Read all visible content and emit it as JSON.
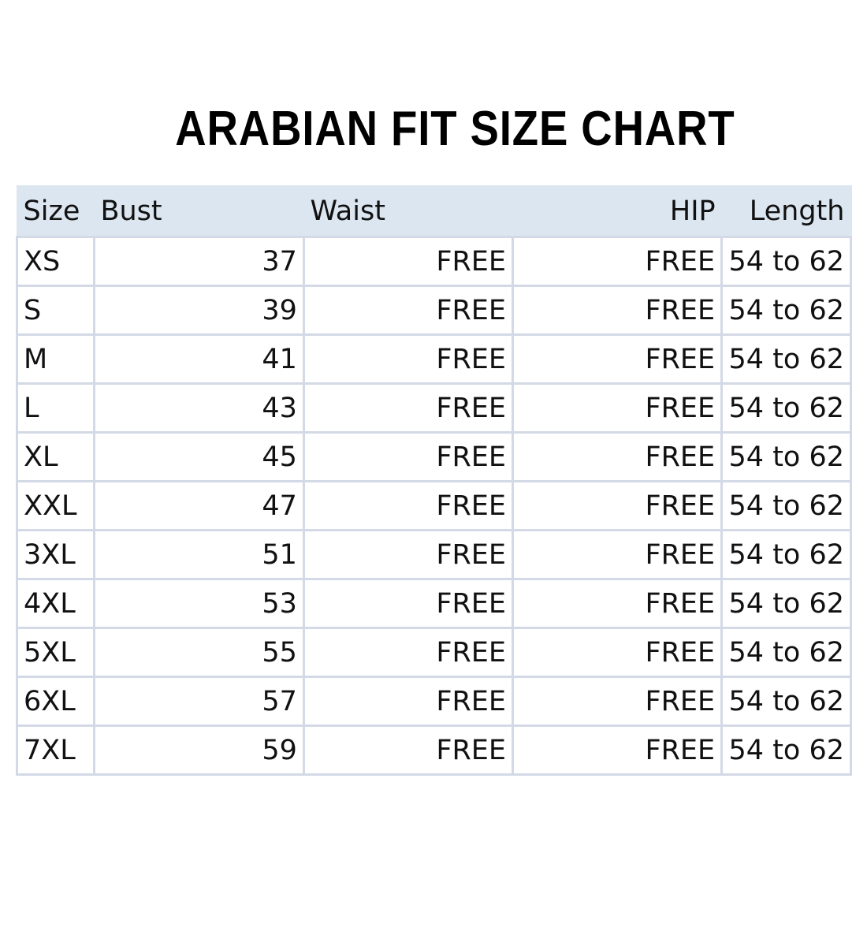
{
  "title": "ARABIAN FIT SIZE CHART",
  "colors": {
    "header_bg": "#dce6f1",
    "border": "#d3d9e6"
  },
  "chart_data": {
    "type": "table",
    "title": "ARABIAN FIT SIZE CHART",
    "columns": [
      "Size",
      "Bust",
      "Waist",
      "HIP",
      "Length"
    ],
    "rows": [
      [
        "XS",
        "37",
        "FREE",
        "FREE",
        "54 to 62"
      ],
      [
        "S",
        "39",
        "FREE",
        "FREE",
        "54 to 62"
      ],
      [
        "M",
        "41",
        "FREE",
        "FREE",
        "54 to 62"
      ],
      [
        "L",
        "43",
        "FREE",
        "FREE",
        "54 to 62"
      ],
      [
        "XL",
        "45",
        "FREE",
        "FREE",
        "54 to 62"
      ],
      [
        "XXL",
        "47",
        "FREE",
        "FREE",
        "54 to 62"
      ],
      [
        "3XL",
        "51",
        "FREE",
        "FREE",
        "54 to 62"
      ],
      [
        "4XL",
        "53",
        "FREE",
        "FREE",
        "54 to 62"
      ],
      [
        "5XL",
        "55",
        "FREE",
        "FREE",
        "54 to 62"
      ],
      [
        "6XL",
        "57",
        "FREE",
        "FREE",
        "54 to 62"
      ],
      [
        "7XL",
        "59",
        "FREE",
        "FREE",
        "54 to 62"
      ]
    ]
  }
}
